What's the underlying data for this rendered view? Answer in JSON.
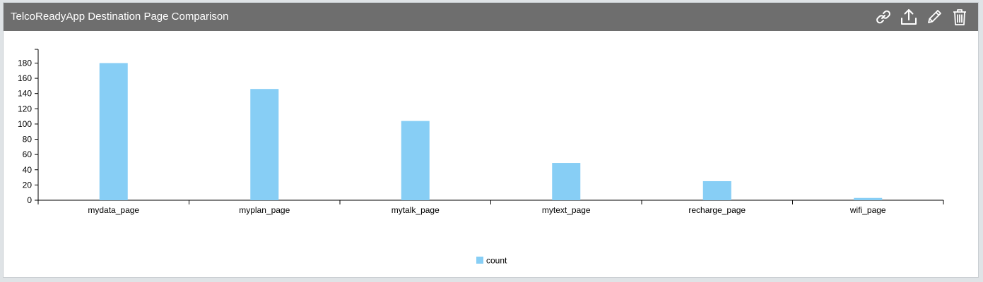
{
  "panel": {
    "title": "TelcoReadyApp Destination Page Comparison",
    "toolbar": {
      "link_icon": "link-icon",
      "export_icon": "upload-icon",
      "edit_icon": "pencil-icon",
      "delete_icon": "trash-icon"
    }
  },
  "colors": {
    "header_bg": "#6e6e6e",
    "bar": "#87cef5"
  },
  "chart_data": {
    "type": "bar",
    "categories": [
      "mydata_page",
      "myplan_page",
      "mytalk_page",
      "mytext_page",
      "recharge_page",
      "wifi_page"
    ],
    "series": [
      {
        "name": "count",
        "values": [
          180,
          146,
          104,
          49,
          25,
          3
        ]
      }
    ],
    "yticks": [
      0,
      20,
      40,
      60,
      80,
      100,
      120,
      140,
      160,
      180
    ],
    "ylim": [
      0,
      198
    ],
    "title": "",
    "xlabel": "",
    "ylabel": "",
    "grid": false,
    "legend": "bottom-center"
  }
}
